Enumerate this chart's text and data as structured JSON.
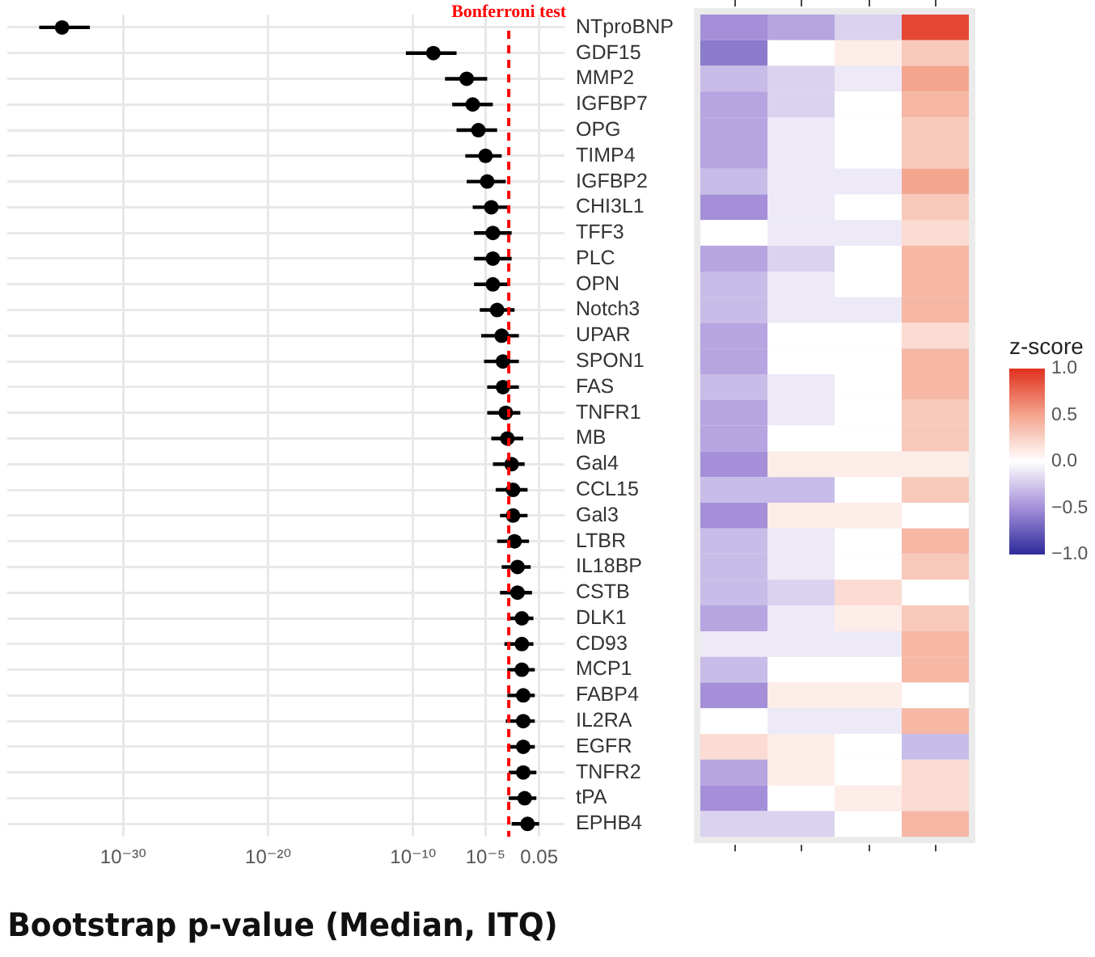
{
  "chart_data": [
    {
      "type": "scatter",
      "orientation": "horizontal",
      "log": "x",
      "tick_labels": "x",
      "grid": true,
      "marker": "circle",
      "color": "#000000",
      "categories": [
        null,
        null,
        null,
        null,
        null,
        null,
        null,
        null,
        null,
        null,
        null,
        null,
        null,
        null,
        null,
        null,
        null,
        null,
        null,
        null,
        null,
        null,
        null,
        null,
        null,
        null,
        null,
        null,
        null,
        null,
        null,
        null
      ],
      "values": [
        6e-35,
        2.5e-09,
        5e-07,
        1.3e-06,
        3.2e-06,
        1e-05,
        1.3e-05,
        2.5e-05,
        3.2e-05,
        3.2e-05,
        3.2e-05,
        6.3e-05,
        0.00013,
        0.00016,
        0.00016,
        0.00025,
        0.00032,
        0.00063,
        0.00079,
        0.00079,
        0.001,
        0.0016,
        0.0016,
        0.0032,
        0.0032,
        0.0032,
        0.004,
        0.004,
        0.004,
        0.004,
        0.005,
        0.0079
      ],
      "errors": [
        [
          1.6e-36,
          5e-33
        ],
        [
          3.2e-11,
          1e-07
        ],
        [
          1.6e-08,
          1.3e-05
        ],
        [
          5e-08,
          3.2e-05
        ],
        [
          1e-07,
          6.3e-05
        ],
        [
          4e-07,
          0.00013
        ],
        [
          5e-07,
          0.00025
        ],
        [
          1.3e-06,
          0.0004
        ],
        [
          1.6e-06,
          0.00063
        ],
        [
          1.6e-06,
          0.00063
        ],
        [
          1.6e-06,
          0.0005
        ],
        [
          4e-06,
          0.001
        ],
        [
          5e-06,
          0.002
        ],
        [
          7.9e-06,
          0.002
        ],
        [
          1.3e-05,
          0.002
        ],
        [
          1.3e-05,
          0.0025
        ],
        [
          2.5e-05,
          0.004
        ],
        [
          3.2e-05,
          0.005
        ],
        [
          5e-05,
          0.0079
        ],
        [
          0.0001,
          0.0079
        ],
        [
          6.3e-05,
          0.01
        ],
        [
          0.00013,
          0.013
        ],
        [
          0.0001,
          0.016
        ],
        [
          0.00032,
          0.02
        ],
        [
          0.0002,
          0.02
        ],
        [
          0.00032,
          0.025
        ],
        [
          0.00032,
          0.025
        ],
        [
          0.00025,
          0.025
        ],
        [
          0.00032,
          0.025
        ],
        [
          0.0004,
          0.032
        ],
        [
          0.0004,
          0.032
        ],
        [
          0.00063,
          0.05
        ]
      ],
      "xlim": [
        1e-38,
        1
      ],
      "xticks": [
        {
          "value": 1e-30,
          "label": "10⁻³⁰"
        },
        {
          "value": 1e-20,
          "label": "10⁻²⁰"
        },
        {
          "value": 1e-10,
          "label": "10⁻¹⁰"
        },
        {
          "value": 1e-05,
          "label": "10⁻⁵"
        },
        0.05
      ],
      "xlabel": "Bootstrap p-value (Median, ITQ)",
      "ref_lines": [
        {
          "axis": "x",
          "value": 0.0004,
          "label": "Bonferroni test",
          "color": "#ff0000",
          "line_style": "dashed"
        }
      ]
    },
    {
      "type": "heatmap",
      "tick_labels": "y",
      "categories": [
        null,
        null,
        null,
        null
      ],
      "y_categories": [
        "NTproBNP",
        "GDF15",
        "MMP2",
        "IGFBP7",
        "OPG",
        "TIMP4",
        "IGFBP2",
        "CHI3L1",
        "TFF3",
        "PLC",
        "OPN",
        "Notch3",
        "UPAR",
        "SPON1",
        "FAS",
        "TNFR1",
        "MB",
        "Gal4",
        "CCL15",
        "Gal3",
        "LTBR",
        "IL18BP",
        "CSTB",
        "DLK1",
        "CD93",
        "MCP1",
        "FABP4",
        "IL2RA",
        "EGFR",
        "TNFR2",
        "tPA",
        "EPHB4"
      ],
      "cells": [
        [
          -0.5,
          -0.4,
          -0.2,
          0.9
        ],
        [
          -0.6,
          0.0,
          0.1,
          0.3
        ],
        [
          -0.3,
          -0.2,
          -0.1,
          0.5
        ],
        [
          -0.4,
          -0.2,
          0.0,
          0.4
        ],
        [
          -0.4,
          -0.1,
          0.0,
          0.3
        ],
        [
          -0.4,
          -0.1,
          0.0,
          0.3
        ],
        [
          -0.3,
          -0.1,
          -0.1,
          0.5
        ],
        [
          -0.5,
          -0.1,
          0.0,
          0.3
        ],
        [
          0.0,
          -0.1,
          -0.1,
          0.2
        ],
        [
          -0.4,
          -0.2,
          0.0,
          0.4
        ],
        [
          -0.3,
          -0.1,
          0.0,
          0.4
        ],
        [
          -0.3,
          -0.1,
          -0.1,
          0.4
        ],
        [
          -0.4,
          0.0,
          0.0,
          0.2
        ],
        [
          -0.4,
          0.0,
          0.0,
          0.4
        ],
        [
          -0.3,
          -0.1,
          0.0,
          0.4
        ],
        [
          -0.4,
          -0.1,
          0.0,
          0.3
        ],
        [
          -0.4,
          0.0,
          0.0,
          0.3
        ],
        [
          -0.5,
          0.1,
          0.1,
          0.1
        ],
        [
          -0.3,
          -0.3,
          0.0,
          0.3
        ],
        [
          -0.5,
          0.1,
          0.1,
          0.0
        ],
        [
          -0.3,
          -0.1,
          0.0,
          0.4
        ],
        [
          -0.3,
          -0.1,
          0.0,
          0.3
        ],
        [
          -0.3,
          -0.2,
          0.2,
          0.0
        ],
        [
          -0.4,
          -0.1,
          0.1,
          0.3
        ],
        [
          -0.1,
          -0.1,
          -0.1,
          0.4
        ],
        [
          -0.3,
          0.0,
          0.0,
          0.4
        ],
        [
          -0.5,
          0.1,
          0.1,
          0.0
        ],
        [
          0.0,
          -0.1,
          -0.1,
          0.4
        ],
        [
          0.2,
          0.1,
          0.0,
          -0.3
        ],
        [
          -0.4,
          0.1,
          0.0,
          0.2
        ],
        [
          -0.5,
          0.0,
          0.1,
          0.2
        ],
        [
          -0.2,
          -0.2,
          0.0,
          0.4
        ]
      ],
      "clabel": "z-score",
      "clim": [
        -1,
        1
      ],
      "cticks": [
        {
          "value": 1,
          "label": "1.0"
        },
        {
          "value": 0.5,
          "label": "0.5"
        },
        {
          "value": 0,
          "label": "0.0"
        },
        {
          "value": -0.5,
          "label": "−0.5"
        },
        {
          "value": -1,
          "label": "−1.0"
        }
      ]
    }
  ]
}
